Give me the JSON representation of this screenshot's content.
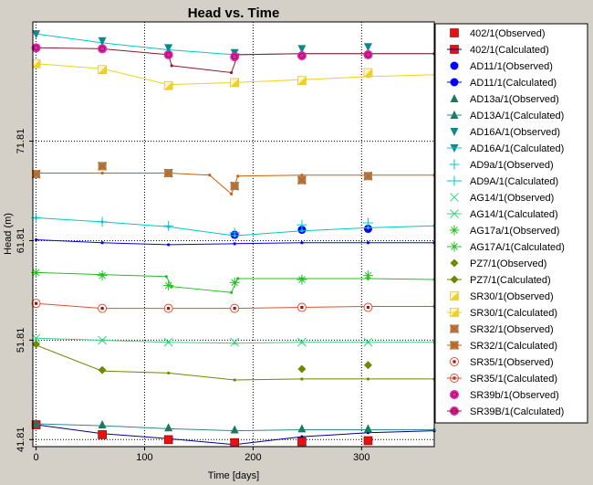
{
  "chart_data": {
    "type": "line",
    "title": "Head vs. Time",
    "xlabel": "Time  [days]",
    "ylabel": "Head (m)",
    "xlim": [
      -3,
      367
    ],
    "ylim": [
      41.1,
      83.8
    ],
    "xticks": [
      {
        "v": 0,
        "label": "0"
      },
      {
        "v": 100,
        "label": "100"
      },
      {
        "v": 200,
        "label": "200"
      },
      {
        "v": 300,
        "label": "300"
      }
    ],
    "yticks": [
      {
        "v": 41.81,
        "label": "41.81"
      },
      {
        "v": 51.81,
        "label": "51.81"
      },
      {
        "v": 61.81,
        "label": "61.81"
      },
      {
        "v": 71.81,
        "label": "71.81"
      }
    ],
    "grid": true,
    "legend_position": "right",
    "series": [
      {
        "name": "402/1",
        "color": "#0000ff",
        "calc_color": "#00008b",
        "marker": "square",
        "marker_color": "#e81010",
        "observed": [
          [
            0,
            43.3
          ],
          [
            61,
            42.3
          ],
          [
            122,
            41.8
          ],
          [
            183,
            41.5
          ],
          [
            245,
            41.6
          ],
          [
            306,
            41.7
          ]
        ],
        "calculated": [
          [
            0,
            43.3
          ],
          [
            61,
            42.4
          ],
          [
            122,
            41.9
          ],
          [
            183,
            41.3
          ],
          [
            245,
            42.1
          ],
          [
            306,
            42.5
          ],
          [
            367,
            42.7
          ]
        ]
      },
      {
        "name": "AD11/1",
        "color": "#0000ff",
        "calc_color": "#0000ff",
        "marker": "circle",
        "marker_color": "#0000ff",
        "observed": [
          [
            183,
            62.4
          ],
          [
            245,
            62.9
          ],
          [
            306,
            63.0
          ]
        ],
        "calculated": [
          [
            0,
            61.9
          ],
          [
            61,
            61.6
          ],
          [
            122,
            61.4
          ],
          [
            183,
            61.5
          ],
          [
            245,
            61.6
          ],
          [
            306,
            61.6
          ],
          [
            367,
            61.6
          ]
        ]
      },
      {
        "name": "AD13a/1",
        "color": "#2a8c8c",
        "calc_color": "#2a8c8c",
        "marker": "triangle",
        "marker_color": "#1a7a60",
        "observed": [
          [
            0,
            43.4
          ],
          [
            61,
            43.3
          ],
          [
            122,
            43.0
          ],
          [
            183,
            42.8
          ],
          [
            245,
            42.9
          ],
          [
            306,
            42.9
          ]
        ],
        "calculated": [
          [
            0,
            43.4
          ],
          [
            61,
            43.2
          ],
          [
            122,
            42.9
          ],
          [
            183,
            42.7
          ],
          [
            245,
            42.8
          ],
          [
            306,
            42.8
          ],
          [
            367,
            42.8
          ]
        ]
      },
      {
        "name": "AD16A/1",
        "color": "#00c8c8",
        "calc_color": "#00c8c8",
        "marker": "triangle-down",
        "marker_color": "#0a8a8a",
        "observed": [
          [
            0,
            82.6
          ],
          [
            61,
            81.9
          ],
          [
            122,
            81.2
          ],
          [
            183,
            80.7
          ],
          [
            245,
            81.1
          ],
          [
            306,
            81.3
          ]
        ],
        "calculated": [
          [
            0,
            82.6
          ],
          [
            61,
            81.7
          ],
          [
            122,
            81.0
          ],
          [
            183,
            80.5
          ],
          [
            245,
            80.6
          ],
          [
            306,
            80.6
          ],
          [
            367,
            80.6
          ]
        ]
      },
      {
        "name": "AD9a/1",
        "color": "#00c8c8",
        "calc_color": "#00c8c8",
        "marker": "plus",
        "marker_color": "#00c8c8",
        "observed": [
          [
            0,
            64.1
          ],
          [
            61,
            63.7
          ],
          [
            122,
            63.3
          ],
          [
            183,
            62.6
          ],
          [
            245,
            63.4
          ],
          [
            306,
            63.6
          ]
        ],
        "calculated": [
          [
            0,
            64.1
          ],
          [
            61,
            63.7
          ],
          [
            122,
            63.2
          ],
          [
            183,
            62.3
          ],
          [
            245,
            62.8
          ],
          [
            306,
            63.1
          ],
          [
            367,
            63.3
          ]
        ]
      },
      {
        "name": "AG14/1",
        "color": "#40d080",
        "calc_color": "#40d080",
        "marker": "x",
        "marker_color": "#40d080",
        "observed": [
          [
            0,
            52.0
          ],
          [
            61,
            51.8
          ],
          [
            122,
            51.6
          ],
          [
            183,
            51.6
          ],
          [
            245,
            51.6
          ],
          [
            306,
            51.6
          ]
        ],
        "calculated": [
          [
            0,
            52.0
          ],
          [
            61,
            51.8
          ],
          [
            122,
            51.6
          ],
          [
            183,
            51.5
          ],
          [
            245,
            51.6
          ],
          [
            306,
            51.6
          ],
          [
            367,
            51.6
          ]
        ]
      },
      {
        "name": "AG17a/1",
        "color": "#22c022",
        "calc_color": "#22c022",
        "marker": "asterisk",
        "marker_color": "#22c022",
        "observed": [
          [
            0,
            58.6
          ],
          [
            61,
            58.3
          ],
          [
            122,
            57.3
          ],
          [
            183,
            57.6
          ],
          [
            245,
            57.9
          ],
          [
            306,
            58.3
          ]
        ],
        "calculated": [
          [
            0,
            58.6
          ],
          [
            61,
            58.4
          ],
          [
            120,
            58.2
          ],
          [
            125,
            57.2
          ],
          [
            180,
            56.6
          ],
          [
            186,
            58.0
          ],
          [
            245,
            58.0
          ],
          [
            306,
            58.0
          ],
          [
            367,
            57.9
          ]
        ]
      },
      {
        "name": "PZ7/1",
        "color": "#a0c000",
        "calc_color": "#6a8a00",
        "marker": "diamond",
        "marker_color": "#6a8a00",
        "observed": [
          [
            0,
            51.4
          ],
          [
            61,
            48.8
          ],
          [
            245,
            48.9
          ],
          [
            306,
            49.3
          ]
        ],
        "calculated": [
          [
            0,
            51.3
          ],
          [
            61,
            48.7
          ],
          [
            122,
            48.5
          ],
          [
            183,
            47.8
          ],
          [
            245,
            47.9
          ],
          [
            306,
            47.9
          ],
          [
            367,
            47.9
          ]
        ]
      },
      {
        "name": "SR30/1",
        "color": "#f0d020",
        "calc_color": "#f0d020",
        "marker": "square-half",
        "marker_color": "#f0d020",
        "observed": [
          [
            0,
            79.6
          ],
          [
            61,
            79.0
          ],
          [
            122,
            77.4
          ],
          [
            183,
            77.7
          ],
          [
            245,
            77.9
          ],
          [
            306,
            78.7
          ]
        ],
        "calculated": [
          [
            0,
            79.6
          ],
          [
            61,
            79.1
          ],
          [
            122,
            77.5
          ],
          [
            183,
            77.7
          ],
          [
            245,
            78.0
          ],
          [
            306,
            78.3
          ],
          [
            367,
            78.5
          ]
        ]
      },
      {
        "name": "SR32/1",
        "color": "#f08000",
        "calc_color": "#d06000",
        "marker": "square-x",
        "marker_color": "#a08060",
        "observed": [
          [
            0,
            68.5
          ],
          [
            61,
            69.3
          ],
          [
            122,
            68.6
          ],
          [
            183,
            67.3
          ],
          [
            245,
            67.9
          ],
          [
            306,
            68.3
          ]
        ],
        "calculated": [
          [
            0,
            68.6
          ],
          [
            61,
            68.6
          ],
          [
            122,
            68.6
          ],
          [
            160,
            68.4
          ],
          [
            180,
            66.5
          ],
          [
            186,
            68.3
          ],
          [
            245,
            68.4
          ],
          [
            306,
            68.4
          ],
          [
            367,
            68.4
          ]
        ]
      },
      {
        "name": "SR35/1",
        "color": "#e05030",
        "calc_color": "#e05030",
        "marker": "circle-dot",
        "marker_color": "#e05030",
        "observed": [
          [
            0,
            55.5
          ],
          [
            61,
            55.0
          ],
          [
            122,
            55.0
          ],
          [
            183,
            55.0
          ],
          [
            245,
            55.1
          ],
          [
            306,
            55.1
          ]
        ],
        "calculated": [
          [
            0,
            55.5
          ],
          [
            61,
            55.0
          ],
          [
            122,
            55.0
          ],
          [
            183,
            55.0
          ],
          [
            245,
            55.1
          ],
          [
            306,
            55.2
          ],
          [
            367,
            55.2
          ]
        ]
      },
      {
        "name": "SR39b/1",
        "color": "#e020b0",
        "calc_color": "#8b1a2a",
        "marker": "circle-ring",
        "marker_color": "#e020b0",
        "observed": [
          [
            0,
            81.2
          ],
          [
            61,
            81.1
          ],
          [
            122,
            80.5
          ],
          [
            183,
            80.3
          ],
          [
            245,
            80.4
          ],
          [
            306,
            80.5
          ]
        ],
        "calculated": [
          [
            0,
            81.2
          ],
          [
            61,
            81.1
          ],
          [
            122,
            80.5
          ],
          [
            125,
            79.4
          ],
          [
            180,
            78.7
          ],
          [
            186,
            80.5
          ],
          [
            245,
            80.6
          ],
          [
            306,
            80.6
          ],
          [
            367,
            80.6
          ]
        ]
      }
    ],
    "legend": [
      {
        "label": "402/1(Observed)",
        "series": 0,
        "kind": "obs"
      },
      {
        "label": "402/1(Calculated)",
        "series": 0,
        "kind": "calc"
      },
      {
        "label": "AD11/1(Observed)",
        "series": 1,
        "kind": "obs"
      },
      {
        "label": "AD11/1(Calculated)",
        "series": 1,
        "kind": "calc"
      },
      {
        "label": "AD13a/1(Observed)",
        "series": 2,
        "kind": "obs"
      },
      {
        "label": "AD13A/1(Calculated)",
        "series": 2,
        "kind": "calc"
      },
      {
        "label": "AD16A/1(Observed)",
        "series": 3,
        "kind": "obs"
      },
      {
        "label": "AD16A/1(Calculated)",
        "series": 3,
        "kind": "calc"
      },
      {
        "label": "AD9a/1(Observed)",
        "series": 4,
        "kind": "obs"
      },
      {
        "label": "AD9A/1(Calculated)",
        "series": 4,
        "kind": "calc"
      },
      {
        "label": "AG14/1(Observed)",
        "series": 5,
        "kind": "obs"
      },
      {
        "label": "AG14/1(Calculated)",
        "series": 5,
        "kind": "calc"
      },
      {
        "label": "AG17a/1(Observed)",
        "series": 6,
        "kind": "obs"
      },
      {
        "label": "AG17A/1(Calculated)",
        "series": 6,
        "kind": "calc"
      },
      {
        "label": "PZ7/1(Observed)",
        "series": 7,
        "kind": "obs"
      },
      {
        "label": "PZ7/1(Calculated)",
        "series": 7,
        "kind": "calc"
      },
      {
        "label": "SR30/1(Observed)",
        "series": 8,
        "kind": "obs"
      },
      {
        "label": "SR30/1(Calculated)",
        "series": 8,
        "kind": "calc"
      },
      {
        "label": "SR32/1(Observed)",
        "series": 9,
        "kind": "obs"
      },
      {
        "label": "SR32/1(Calculated)",
        "series": 9,
        "kind": "calc"
      },
      {
        "label": "SR35/1(Observed)",
        "series": 10,
        "kind": "obs"
      },
      {
        "label": "SR35/1(Calculated)",
        "series": 10,
        "kind": "calc"
      },
      {
        "label": "SR39b/1(Observed)",
        "series": 11,
        "kind": "obs"
      },
      {
        "label": "SR39B/1(Calculated)",
        "series": 11,
        "kind": "calc"
      }
    ]
  }
}
